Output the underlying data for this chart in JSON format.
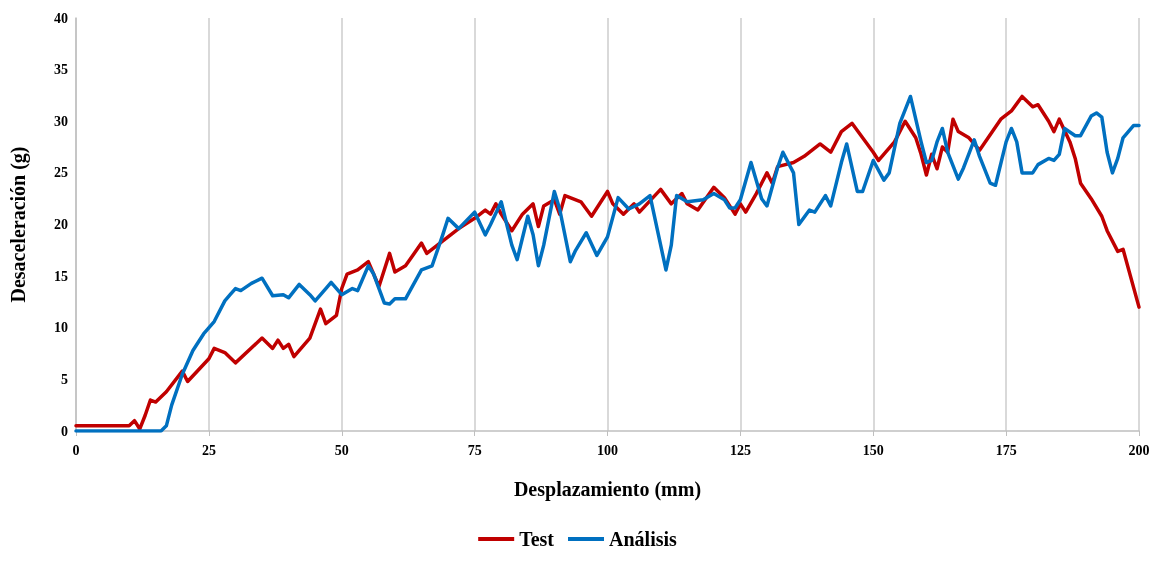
{
  "chart_data": {
    "type": "line",
    "xlabel": "Desplazamiento (mm)",
    "ylabel": "Desaceleración (g)",
    "xlim": [
      0,
      200
    ],
    "xticks": [
      0,
      25,
      50,
      75,
      100,
      125,
      150,
      175,
      200
    ],
    "ylim": [
      0,
      40
    ],
    "yticks": [
      0,
      5,
      10,
      15,
      20,
      25,
      30,
      35,
      40
    ],
    "grid": "x",
    "legend": "bottom",
    "marker": "none",
    "line_style": "solid",
    "series": [
      {
        "name": "Test",
        "color": "#c00000",
        "x": [
          0,
          10,
          11,
          12,
          13,
          14,
          15,
          17,
          20,
          21,
          25,
          26,
          28,
          30,
          35,
          37,
          38,
          39,
          40,
          41,
          44,
          46,
          47,
          49,
          50,
          51,
          53,
          55,
          57,
          59,
          60,
          62,
          65,
          66,
          68,
          72,
          75,
          77,
          78,
          79,
          80,
          82,
          84,
          86,
          87,
          88,
          90,
          91,
          92,
          95,
          97,
          100,
          101,
          103,
          105,
          106,
          110,
          112,
          114,
          115,
          117,
          120,
          122,
          124,
          125,
          126,
          128,
          130,
          131,
          132,
          135,
          137,
          140,
          142,
          144,
          146,
          148,
          150,
          151,
          154,
          156,
          158,
          159,
          160,
          161,
          162,
          163,
          164,
          165,
          166,
          168,
          170,
          174,
          176,
          178,
          180,
          181,
          183,
          184,
          185,
          187,
          188,
          189,
          191,
          193,
          194,
          196,
          197,
          200
        ],
        "values": [
          0.5,
          0.5,
          1,
          0.2,
          1.5,
          3,
          2.8,
          3.8,
          5.8,
          4.8,
          7,
          8,
          7.6,
          6.6,
          9,
          8,
          8.8,
          8,
          8.4,
          7.2,
          9,
          11.8,
          10.4,
          11.2,
          13.8,
          15.2,
          15.6,
          16.4,
          14,
          17.2,
          15.4,
          16,
          18.2,
          17.2,
          18,
          19.6,
          20.6,
          21.4,
          21,
          22,
          21,
          19.4,
          21,
          22,
          19.8,
          21.8,
          22.4,
          21,
          22.8,
          22.2,
          20.8,
          23.2,
          22,
          21,
          22,
          21.2,
          23.4,
          22,
          23,
          22,
          21.4,
          23.6,
          22.6,
          21,
          22,
          21.2,
          23,
          25,
          24,
          25.6,
          26,
          26.6,
          27.8,
          27,
          29,
          29.8,
          28.4,
          27,
          26.2,
          28,
          30,
          28.4,
          26.8,
          24.8,
          26.8,
          25.4,
          27.5,
          27,
          30.2,
          29,
          28.4,
          27.2,
          30.2,
          31,
          32.4,
          31.4,
          31.6,
          30,
          29,
          30.2,
          28,
          26.4,
          24,
          22.5,
          20.8,
          19.4,
          17.4,
          17.6,
          12
        ]
      },
      {
        "name": "Análisis",
        "color": "#0070c0",
        "x": [
          0,
          16,
          17,
          18,
          20,
          22,
          24,
          26,
          28,
          29,
          30,
          31,
          33,
          35,
          37,
          39,
          40,
          42,
          44,
          45,
          47,
          48,
          50,
          52,
          53,
          55,
          56,
          58,
          59,
          60,
          62,
          65,
          67,
          69,
          70,
          72,
          75,
          77,
          78,
          80,
          82,
          83,
          85,
          86,
          87,
          88,
          90,
          91,
          93,
          94,
          96,
          98,
          100,
          102,
          104,
          106,
          108,
          110,
          111,
          112,
          113,
          115,
          118,
          120,
          122,
          123,
          124,
          125,
          127,
          129,
          130,
          132,
          133,
          135,
          136,
          138,
          139,
          141,
          142,
          144,
          145,
          146,
          147,
          148,
          150,
          152,
          153,
          155,
          157,
          159,
          160,
          161,
          162,
          163,
          164,
          166,
          167,
          169,
          170,
          172,
          173,
          175,
          176,
          177,
          178,
          180,
          181,
          183,
          184,
          185,
          186,
          188,
          189,
          191,
          192,
          193,
          194,
          195,
          196,
          197,
          199,
          200
        ],
        "values": [
          0,
          0,
          0.5,
          2.5,
          5.5,
          7.8,
          9.4,
          10.6,
          12.6,
          13.2,
          13.8,
          13.6,
          14.3,
          14.8,
          13.1,
          13.2,
          12.9,
          14.2,
          13.2,
          12.6,
          13.8,
          14.4,
          13.2,
          13.8,
          13.6,
          16,
          15.2,
          12.4,
          12.3,
          12.8,
          12.8,
          15.6,
          16,
          19,
          20.6,
          19.6,
          21.2,
          19,
          20,
          22.2,
          18,
          16.6,
          20.8,
          19,
          16,
          18,
          23.2,
          21.5,
          16.4,
          17.5,
          19.2,
          17,
          18.8,
          22.6,
          21.5,
          22,
          22.8,
          18,
          15.6,
          18,
          22.8,
          22.2,
          22.4,
          23,
          22.4,
          21.6,
          21.6,
          22.4,
          26,
          22.5,
          21.8,
          25.5,
          27,
          25,
          20,
          21.4,
          21.2,
          22.8,
          21.8,
          26,
          27.8,
          25.5,
          23.2,
          23.2,
          26.2,
          24.3,
          25,
          29.8,
          32.4,
          28,
          26,
          26.2,
          28,
          29.3,
          27,
          24.4,
          25.5,
          28.2,
          26.6,
          24,
          23.8,
          28,
          29.3,
          28,
          25,
          25,
          25.8,
          26.4,
          26.2,
          26.8,
          29.3,
          28.6,
          28.6,
          30.5,
          30.8,
          30.4,
          27,
          25,
          26.4,
          28.4,
          29.6,
          29.6
        ]
      }
    ]
  }
}
